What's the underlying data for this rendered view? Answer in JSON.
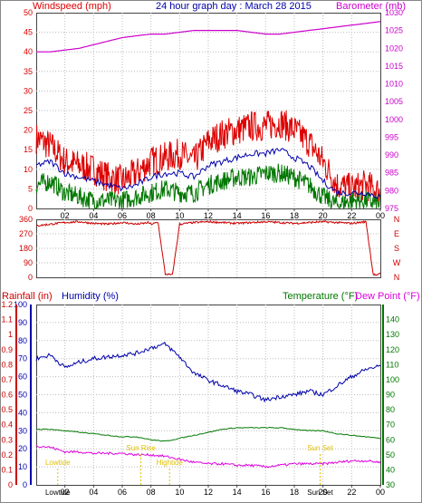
{
  "header": {
    "windspeed_label": "Windspeed (mph)",
    "title": "24 hour graph day : March 28 2015",
    "barometer_label": "Barometer (mb)"
  },
  "footer": {
    "rainfall_label": "Rainfall (in)",
    "humidity_label": "Humidity (%)",
    "temperature_label": "Temperature (°F)",
    "dewpoint_label": "Dew Point (°F)"
  },
  "colors": {
    "wind": "#dd0000",
    "wind_avg": "#0000aa",
    "wind_min": "#007700",
    "barometer": "#cc00cc",
    "direction": "#cc0000",
    "rain": "#cc0000",
    "humidity": "#0000aa",
    "temperature": "#007700",
    "dewpoint": "#dd00dd",
    "sun": "#e0c000"
  },
  "chart_data": [
    {
      "type": "line",
      "title": "24 hour graph day : March 28 2015",
      "x_ticks": [
        "02",
        "04",
        "06",
        "08",
        "10",
        "12",
        "14",
        "16",
        "18",
        "20",
        "22",
        "00"
      ],
      "y_left_label": "Windspeed (mph)",
      "y_left_range": [
        0,
        50
      ],
      "y_left_ticks": [
        "0",
        "5",
        "10",
        "15",
        "20",
        "25",
        "30",
        "35",
        "40",
        "45",
        "50"
      ],
      "y_right_label": "Barometer (mb)",
      "y_right_range": [
        975,
        1030
      ],
      "y_right_ticks": [
        "975",
        "980",
        "985",
        "990",
        "995",
        "1000",
        "1005",
        "1010",
        "1015",
        "1020",
        "1025",
        "1030"
      ],
      "x_hours": [
        0,
        1,
        2,
        3,
        4,
        5,
        6,
        7,
        8,
        9,
        10,
        11,
        12,
        13,
        14,
        15,
        16,
        17,
        18,
        19,
        20,
        21,
        22,
        23,
        24
      ],
      "series": [
        {
          "name": "Windspeed (mph)",
          "values": [
            18,
            16,
            12,
            11,
            10,
            8,
            7,
            9,
            12,
            13,
            14,
            12,
            17,
            19,
            20,
            21,
            21,
            22,
            20,
            17,
            12,
            6,
            5,
            6,
            4
          ]
        },
        {
          "name": "Windspeed average",
          "values": [
            11,
            12,
            9,
            8,
            7,
            6,
            5,
            6,
            8,
            9,
            9,
            8,
            11,
            12,
            13,
            14,
            14,
            15,
            13,
            11,
            7,
            4,
            4,
            4,
            3
          ]
        },
        {
          "name": "Windspeed minimum",
          "values": [
            6,
            7,
            4,
            3,
            2,
            2,
            2,
            3,
            4,
            5,
            4,
            4,
            6,
            7,
            8,
            8,
            9,
            9,
            8,
            6,
            3,
            1,
            2,
            2,
            1
          ]
        },
        {
          "name": "Barometer (mb)",
          "values": [
            1019,
            1019,
            1019.5,
            1020,
            1021,
            1022,
            1023,
            1023.5,
            1024,
            1024,
            1024.5,
            1025,
            1025,
            1025,
            1025,
            1024.5,
            1024,
            1024,
            1024.5,
            1025,
            1025.5,
            1026,
            1026.5,
            1027,
            1027.5
          ]
        }
      ]
    },
    {
      "type": "line",
      "x_ticks": [
        "02",
        "04",
        "06",
        "08",
        "10",
        "12",
        "14",
        "16",
        "18",
        "20",
        "22",
        "00"
      ],
      "y_left_range": [
        0,
        360
      ],
      "y_left_ticks": [
        "0",
        "90",
        "180",
        "270",
        "360"
      ],
      "y_right_ticks": [
        "N",
        "W",
        "S",
        "E",
        "N"
      ],
      "x_hours": [
        0,
        1,
        2,
        3,
        4,
        5,
        6,
        7,
        7.5,
        7.8,
        8,
        8.5,
        9,
        9.5,
        10,
        11,
        12,
        13,
        14,
        15,
        16,
        17,
        18,
        19,
        20,
        21,
        22,
        23,
        23.5,
        23.8,
        24
      ],
      "series": [
        {
          "name": "Wind direction",
          "values": [
            320,
            330,
            340,
            345,
            335,
            330,
            340,
            330,
            335,
            340,
            330,
            340,
            20,
            15,
            330,
            340,
            345,
            340,
            335,
            340,
            345,
            340,
            335,
            340,
            345,
            340,
            335,
            345,
            20,
            10,
            30
          ]
        }
      ]
    },
    {
      "type": "line",
      "x_ticks": [
        "02",
        "04",
        "06",
        "08",
        "10",
        "12",
        "14",
        "16",
        "18",
        "20",
        "22",
        "00"
      ],
      "y_left_label": "Humidity (%)",
      "y_left_range": [
        0,
        100
      ],
      "y_left_ticks": [
        "0",
        "10",
        "20",
        "30",
        "40",
        "50",
        "60",
        "70",
        "80",
        "90",
        "100"
      ],
      "y_rain_label": "Rainfall (in)",
      "y_rain_ticks": [
        "0",
        "0.1",
        "0.2",
        "0.3",
        "0.4",
        "0.5",
        "0.6",
        "0.7",
        "0.8",
        "0.9",
        "1",
        "1.1",
        "1.2"
      ],
      "y_right_label": "Temperature (°F)",
      "y_right_range": [
        30,
        150
      ],
      "y_right_ticks": [
        "30",
        "40",
        "50",
        "60",
        "70",
        "80",
        "90",
        "100",
        "110",
        "120",
        "130",
        "140"
      ],
      "x_hours": [
        0,
        1,
        2,
        3,
        4,
        5,
        6,
        7,
        8,
        9,
        10,
        11,
        12,
        13,
        14,
        15,
        16,
        17,
        18,
        19,
        20,
        21,
        22,
        23,
        24
      ],
      "series": [
        {
          "name": "Humidity (%)",
          "values": [
            70,
            72,
            65,
            68,
            70,
            71,
            72,
            73,
            76,
            78,
            71,
            62,
            58,
            55,
            52,
            50,
            47,
            49,
            50,
            52,
            50,
            55,
            60,
            64,
            66
          ]
        },
        {
          "name": "Temperature (°F)",
          "values": [
            67,
            67,
            66,
            65,
            64,
            63,
            62,
            62,
            60,
            59,
            61,
            63,
            65,
            67,
            68,
            68,
            68,
            68,
            67,
            66,
            66,
            64,
            63,
            62,
            61
          ]
        },
        {
          "name": "Dew Point (°F)",
          "values": [
            56,
            55,
            52,
            52,
            51,
            51,
            51,
            50,
            50,
            49,
            47,
            45,
            44,
            44,
            43,
            43,
            42,
            43,
            44,
            44,
            44,
            45,
            46,
            46,
            45
          ]
        },
        {
          "name": "Rainfall (in)",
          "values": [
            0,
            0,
            0,
            0,
            0,
            0,
            0,
            0,
            0,
            0,
            0,
            0,
            0,
            0,
            0,
            0,
            0,
            0,
            0,
            0,
            0,
            0,
            0,
            0,
            0
          ]
        }
      ],
      "annotations": [
        {
          "text": "Lowtide",
          "hour": 1.5
        },
        {
          "text": "Sun Rise",
          "hour": 7.3
        },
        {
          "text": "Hightide",
          "hour": 9.3
        },
        {
          "text": "Sun Set",
          "hour": 19.8
        },
        {
          "text": "Lowtide",
          "hour": 1.5,
          "placement": "axis"
        },
        {
          "text": "Sun Set",
          "hour": 19.8,
          "placement": "axis"
        }
      ]
    }
  ]
}
